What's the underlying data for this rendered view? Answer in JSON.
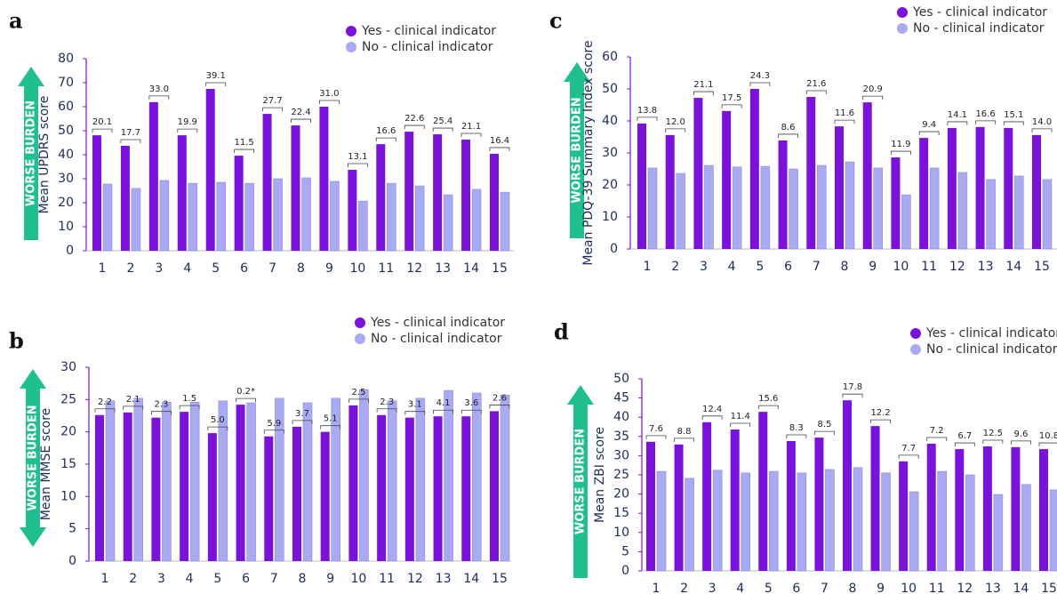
{
  "chart_data": [
    {
      "type": "bar",
      "panel_label": "a",
      "arrow_label": "WORSE BURDEN",
      "ylabel": "Mean UPDRS score",
      "categories": [
        "1",
        "2",
        "3",
        "4",
        "5",
        "6",
        "7",
        "8",
        "9",
        "10",
        "11",
        "12",
        "13",
        "14",
        "15"
      ],
      "series": [
        {
          "name": "Yes - clinical indicator",
          "color": "#7a12d9",
          "values": [
            48.1,
            43.7,
            61.9,
            48.1,
            67.4,
            39.6,
            57,
            52.2,
            60,
            33.7,
            44.4,
            49.6,
            48.5,
            46.3,
            40.4
          ]
        },
        {
          "name": "No - clinical indicator",
          "color": "#a9aaf2",
          "values": [
            27.8,
            26,
            29.3,
            28.1,
            28.5,
            28.1,
            30,
            30.4,
            28.9,
            20.7,
            28.1,
            27,
            23.3,
            25.6,
            24.4
          ]
        }
      ],
      "annotations": [
        "20.1",
        "17.7",
        "33.0",
        "19.9",
        "39.1",
        "11.5",
        "27.7",
        "22.4",
        "31.0",
        "13.1",
        "16.6",
        "22.6",
        "25.4",
        "21.1",
        "16.4"
      ],
      "ylim": [
        0,
        80
      ],
      "yticks": [
        0,
        10,
        20,
        30,
        40,
        50,
        60,
        70,
        80
      ]
    },
    {
      "type": "bar",
      "panel_label": "b",
      "arrow_label": "WORSE BURDEN",
      "ylabel": "Mean MMSE score",
      "categories": [
        "1",
        "2",
        "3",
        "4",
        "5",
        "6",
        "7",
        "8",
        "9",
        "10",
        "11",
        "12",
        "13",
        "14",
        "15"
      ],
      "series": [
        {
          "name": "Yes - clinical indicator",
          "color": "#7a12d9",
          "values": [
            22.6,
            23,
            22.2,
            23.1,
            19.8,
            24.2,
            19.3,
            20.8,
            20,
            24.1,
            22.6,
            22.2,
            22.4,
            22.4,
            23.2
          ]
        },
        {
          "name": "No - clinical indicator",
          "color": "#a9aaf2",
          "values": [
            24.8,
            25.2,
            24.6,
            24.6,
            24.8,
            24.5,
            25.2,
            24.5,
            25.2,
            26.5,
            24.8,
            25.2,
            26.4,
            26,
            25.7
          ]
        }
      ],
      "annotations": [
        "2.2",
        "2.1",
        "2.3",
        "1.5",
        "5.0",
        "0.2*",
        "5.9",
        "3.7",
        "5.1",
        "2.5",
        "2.3",
        "3.1",
        "4.1",
        "3.6",
        "2.6"
      ],
      "ylim": [
        0,
        30
      ],
      "yticks": [
        0,
        5,
        10,
        15,
        20,
        25,
        30
      ]
    },
    {
      "type": "bar",
      "panel_label": "c",
      "arrow_label": "WORSE BURDEN",
      "ylabel": "Mean PDQ-39 Summary Index  score",
      "categories": [
        "1",
        "2",
        "3",
        "4",
        "5",
        "6",
        "7",
        "8",
        "9",
        "10",
        "11",
        "12",
        "13",
        "14",
        "15"
      ],
      "series": [
        {
          "name": "Yes - clinical indicator",
          "color": "#7a12d9",
          "values": [
            39.2,
            35.6,
            47.2,
            43.1,
            50,
            33.9,
            47.5,
            38.3,
            45.8,
            28.6,
            34.7,
            37.8,
            38.1,
            37.8,
            35.6
          ]
        },
        {
          "name": "No - clinical indicator",
          "color": "#a9aaf2",
          "values": [
            25.3,
            23.6,
            26.1,
            25.6,
            25.8,
            25,
            26.1,
            27.2,
            25.3,
            16.9,
            25.3,
            23.9,
            21.7,
            22.8,
            21.7
          ]
        }
      ],
      "annotations": [
        "13.8",
        "12.0",
        "21.1",
        "17.5",
        "24.3",
        "8.6",
        "21.6",
        "11.6",
        "20.9",
        "11.9",
        "9.4",
        "14.1",
        "16.6",
        "15.1",
        "14.0"
      ],
      "ylim": [
        0,
        60
      ],
      "yticks": [
        0,
        10,
        20,
        30,
        40,
        50,
        60
      ]
    },
    {
      "type": "bar",
      "panel_label": "d",
      "arrow_label": "WORSE BURDEN",
      "ylabel": "Mean ZBI  score",
      "categories": [
        "1",
        "2",
        "3",
        "4",
        "5",
        "6",
        "7",
        "8",
        "9",
        "10",
        "11",
        "12",
        "13",
        "14",
        "15"
      ],
      "series": [
        {
          "name": "Yes - clinical indicator",
          "color": "#7a12d9",
          "values": [
            33.6,
            32.9,
            38.7,
            36.8,
            41.4,
            33.8,
            34.7,
            44.4,
            37.7,
            28.5,
            33.1,
            31.7,
            32.4,
            32.2,
            31.7
          ]
        },
        {
          "name": "No - clinical indicator",
          "color": "#a9aaf2",
          "values": [
            25.9,
            24.1,
            26.2,
            25.5,
            25.9,
            25.5,
            26.4,
            26.9,
            25.5,
            20.6,
            25.9,
            25,
            19.9,
            22.5,
            21.1
          ]
        }
      ],
      "annotations": [
        "7.6",
        "8.8",
        "12.4",
        "11.4",
        "15.6",
        "8.3",
        "8.5",
        "17.8",
        "12.2",
        "7.7",
        "7.2",
        "6.7",
        "12.5",
        "9.6",
        "10.8"
      ],
      "ylim": [
        0,
        50
      ],
      "yticks": [
        0,
        5,
        10,
        15,
        20,
        25,
        30,
        35,
        40,
        45,
        50
      ]
    }
  ]
}
